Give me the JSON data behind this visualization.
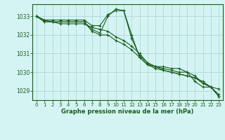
{
  "bg_color": "#d4f4f4",
  "grid_color": "#aed8d8",
  "line_color": "#1a5c1a",
  "xlabel": "Graphe pression niveau de la mer (hPa)",
  "ylim": [
    1028.5,
    1033.65
  ],
  "xlim": [
    -0.5,
    23.5
  ],
  "yticks": [
    1029,
    1030,
    1031,
    1032,
    1033
  ],
  "xticks": [
    0,
    1,
    2,
    3,
    4,
    5,
    6,
    7,
    8,
    9,
    10,
    11,
    12,
    13,
    14,
    15,
    16,
    17,
    18,
    19,
    20,
    21,
    22,
    23
  ],
  "series": [
    [
      1033.0,
      1032.8,
      1032.8,
      1032.8,
      1032.8,
      1032.8,
      1032.8,
      1032.5,
      1032.5,
      1033.1,
      1033.3,
      1033.3,
      1032.0,
      1030.8,
      1030.4,
      1030.3,
      1030.3,
      1030.2,
      1030.2,
      1030.0,
      1029.5,
      1029.2,
      1029.2,
      1028.7
    ],
    [
      1033.0,
      1032.7,
      1032.7,
      1032.7,
      1032.7,
      1032.7,
      1032.7,
      1032.2,
      1032.0,
      1032.0,
      1031.7,
      1031.5,
      1031.2,
      1030.8,
      1030.4,
      1030.2,
      1030.1,
      1030.0,
      1029.9,
      1029.8,
      1029.7,
      1029.4,
      1029.2,
      1029.1
    ],
    [
      1033.0,
      1032.7,
      1032.7,
      1032.6,
      1032.6,
      1032.6,
      1032.6,
      1032.4,
      1032.3,
      1032.2,
      1031.9,
      1031.7,
      1031.4,
      1031.0,
      1030.5,
      1030.3,
      1030.1,
      1030.0,
      1029.9,
      1029.8,
      1029.7,
      1029.5,
      1029.2,
      1028.8
    ],
    [
      1033.0,
      1032.8,
      1032.7,
      1032.7,
      1032.7,
      1032.7,
      1032.7,
      1032.3,
      1032.1,
      1033.0,
      1033.4,
      1033.3,
      1031.8,
      1030.9,
      1030.5,
      1030.3,
      1030.2,
      1030.1,
      1030.0,
      1030.0,
      1029.8,
      1029.4,
      1029.2,
      1028.7
    ]
  ]
}
